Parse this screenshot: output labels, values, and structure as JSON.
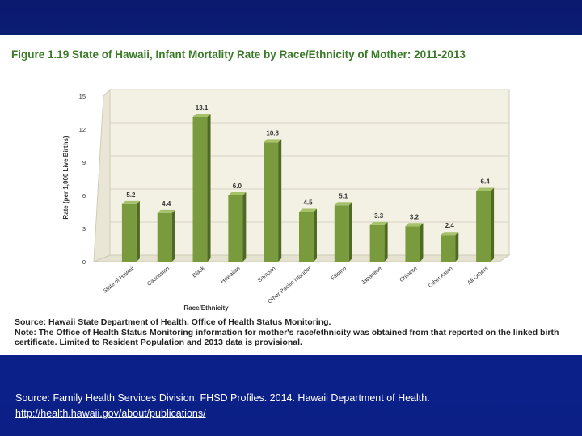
{
  "figure": {
    "title": "Figure 1.19 State of Hawaii, Infant Mortality Rate by Race/Ethnicity of Mother: 2011-2013",
    "source_line": "Source: Hawaii State Department of Health, Office of Health Status Monitoring.",
    "note_line": "Note: The Office of Health Status Monitoring information for mother's race/ethnicity was obtained from that reported on the linked birth certificate. Limited to Resident Population and 2013 data is provisional."
  },
  "footer": {
    "citation": "Source: Family Health Services Division. FHSD Profiles. 2014. Hawaii Department of Health.",
    "url": "http://health.hawaii.gov/about/publications/"
  },
  "colors": {
    "bar": "#7a9a3e",
    "bar_side": "#4f6a22",
    "bar_top": "#a5c16a",
    "chart_wall": "#f3f1e4",
    "title": "#3a7a28",
    "slide_background": "#0b1f86"
  },
  "chart_data": {
    "type": "bar",
    "title": "Figure 1.19 State of Hawaii, Infant Mortality Rate by Race/Ethnicity of Mother: 2011-2013",
    "xlabel": "Race/Ethnicity",
    "ylabel": "Rate (per 1,000 Live Births)",
    "ylim": [
      0,
      15
    ],
    "yticks": [
      "0",
      "3",
      "6",
      "9",
      "12",
      "15"
    ],
    "categories": [
      "State of Hawaii",
      "Caucasian",
      "Black",
      "Hawaiian",
      "Samoan",
      "Other Pacific Islander",
      "Filipino",
      "Japanese",
      "Chinese",
      "Other Asian",
      "All Others"
    ],
    "values": [
      5.2,
      4.4,
      13.1,
      6.0,
      10.8,
      4.5,
      5.1,
      3.3,
      3.2,
      2.4,
      6.4
    ],
    "data_labels": [
      "5.2",
      "4.4",
      "13.1",
      "6.0",
      "10.8",
      "4.5",
      "5.1",
      "3.3",
      "3.2",
      "2.4",
      "6.4"
    ],
    "grid": true,
    "legend": "none"
  }
}
